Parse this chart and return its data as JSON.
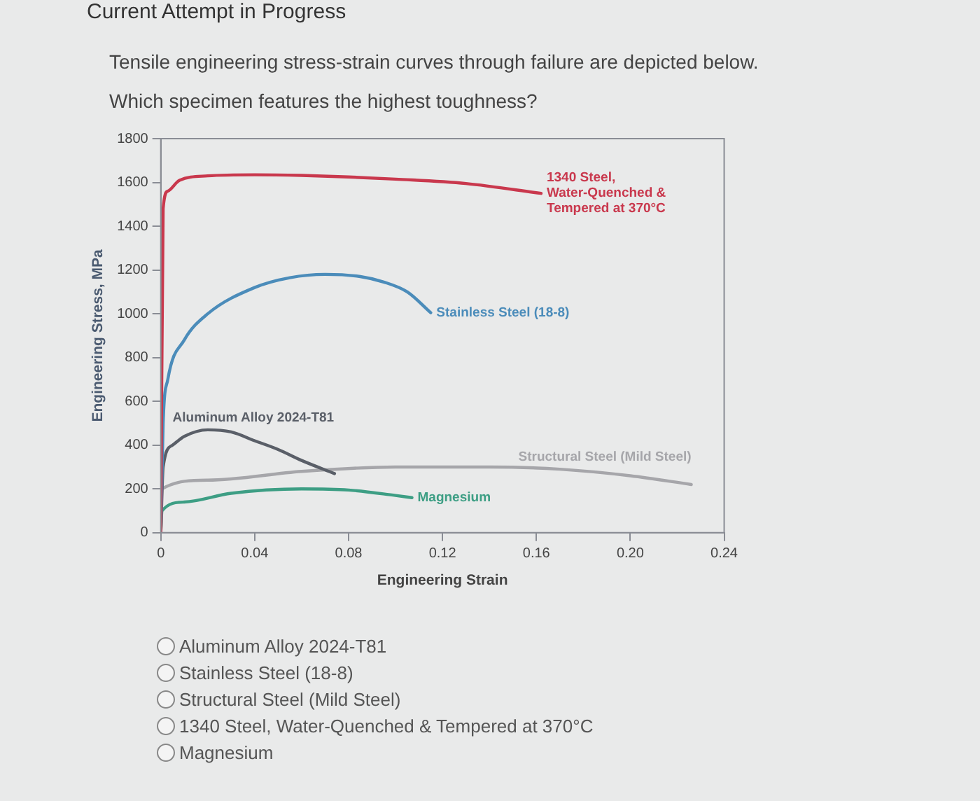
{
  "chart_data": {
    "type": "line",
    "title": "Tensile engineering stress-strain curves through failure are depicted below.",
    "subtitle": "Which specimen features the highest toughness?",
    "xlabel": "Engineering Strain",
    "ylabel": "Engineering Stress, MPa",
    "xlim": [
      0,
      0.24
    ],
    "xticks": [
      0,
      0.04,
      0.08,
      0.12,
      0.16,
      {
        "value": 0.2,
        "label": "0.20"
      },
      0.24
    ],
    "ylim": [
      0,
      1800
    ],
    "yticks": [
      0,
      200,
      400,
      600,
      800,
      1000,
      1200,
      1400,
      1600,
      1800
    ],
    "series": [
      {
        "name": "1340 Steel, Water-Quenched & Tempered at 370°C",
        "color": "#c9384d",
        "x": [
          0,
          0.001,
          0.003,
          0.008,
          0.02,
          0.04,
          0.06,
          0.08,
          0.1,
          0.13,
          0.162
        ],
        "values": [
          0,
          1480,
          1560,
          1610,
          1630,
          1635,
          1632,
          1625,
          1615,
          1595,
          1550
        ]
      },
      {
        "name": "Stainless Steel (18-8)",
        "color": "#4b8cba",
        "x": [
          0,
          0.001,
          0.003,
          0.01,
          0.02,
          0.04,
          0.055,
          0.07,
          0.085,
          0.095,
          0.105,
          0.115
        ],
        "values": [
          0,
          500,
          700,
          880,
          1000,
          1120,
          1165,
          1180,
          1170,
          1145,
          1100,
          1005
        ]
      },
      {
        "name": "Aluminum Alloy 2024-T81",
        "color": "#5a5f68",
        "x": [
          0,
          0.001,
          0.005,
          0.01,
          0.02,
          0.03,
          0.04,
          0.05,
          0.06,
          0.074
        ],
        "values": [
          0,
          300,
          400,
          440,
          470,
          460,
          420,
          380,
          330,
          270
        ]
      },
      {
        "name": "Structural Steel (Mild Steel)",
        "color": "#a6a6aa",
        "x": [
          0,
          0.0005,
          0.02,
          0.06,
          0.1,
          0.14,
          0.17,
          0.2,
          0.226
        ],
        "values": [
          0,
          200,
          240,
          280,
          300,
          300,
          290,
          260,
          220
        ]
      },
      {
        "name": "Magnesium",
        "color": "#3d9e84",
        "x": [
          0,
          0.0005,
          0.01,
          0.03,
          0.06,
          0.08,
          0.1,
          0.107
        ],
        "values": [
          0,
          100,
          140,
          180,
          200,
          195,
          170,
          160
        ]
      }
    ],
    "annotations": [
      "Current Attempt in Progress",
      "Aluminum Alloy 2024-T81",
      "Stainless Steel (18-8)",
      "Structural Steel (Mild Steel)",
      "1340 Steel, Water-Quenched & Tempered at 370°C",
      "Magnesium"
    ]
  }
}
